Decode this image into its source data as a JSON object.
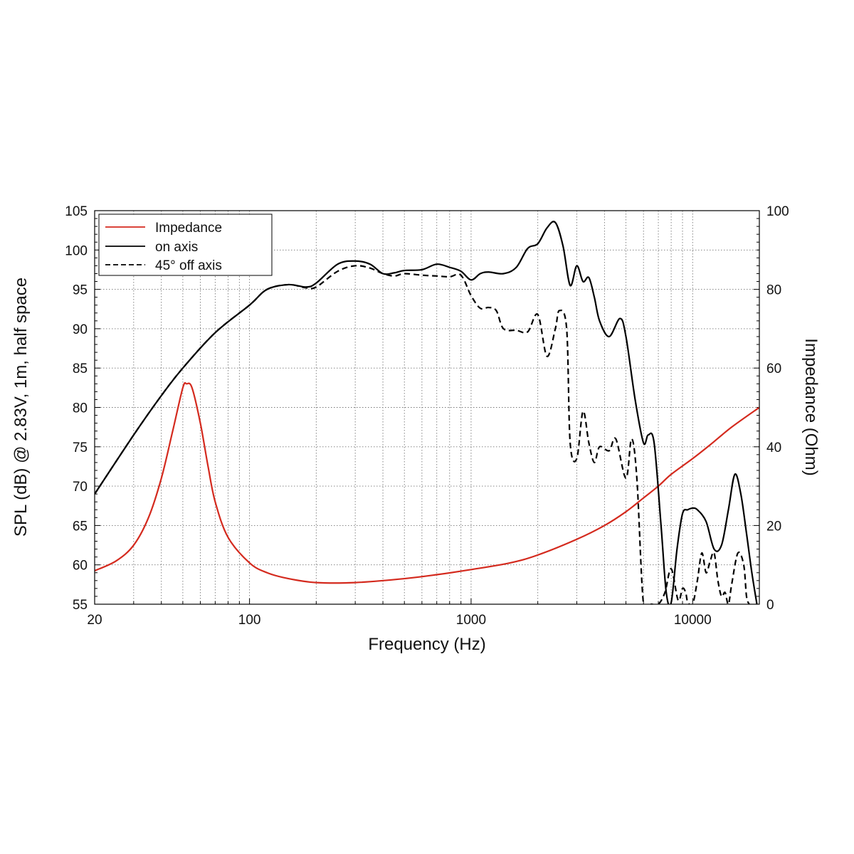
{
  "chart_data": {
    "type": "line",
    "x_scale": "log",
    "xlabel": "Frequency (Hz)",
    "ylabel": "SPL (dB) @ 2.83V, 1m, half space",
    "y2label": "Impedance (Ohm)",
    "xlim": [
      20,
      20000
    ],
    "ylim": [
      55,
      105
    ],
    "y2lim": [
      0,
      100
    ],
    "x_ticks": [
      "20",
      "100",
      "1000",
      "10000"
    ],
    "y_ticks": [
      "55",
      "60",
      "65",
      "70",
      "75",
      "80",
      "85",
      "90",
      "95",
      "100",
      "105"
    ],
    "y2_ticks": [
      "0",
      "20",
      "40",
      "60",
      "80",
      "100"
    ],
    "grid": true,
    "legend_position": "top-left",
    "series": [
      {
        "name": "Impedance",
        "axis": "right",
        "color": "#d42a1e",
        "dash": "solid",
        "points": [
          [
            20,
            8.5
          ],
          [
            25,
            11
          ],
          [
            30,
            15
          ],
          [
            35,
            22
          ],
          [
            40,
            32
          ],
          [
            45,
            44
          ],
          [
            50,
            55
          ],
          [
            52,
            56
          ],
          [
            55,
            55
          ],
          [
            60,
            46
          ],
          [
            65,
            35
          ],
          [
            70,
            26
          ],
          [
            80,
            17
          ],
          [
            100,
            10.5
          ],
          [
            120,
            8
          ],
          [
            150,
            6.5
          ],
          [
            200,
            5.5
          ],
          [
            300,
            5.5
          ],
          [
            500,
            6.5
          ],
          [
            700,
            7.5
          ],
          [
            1000,
            8.8
          ],
          [
            1500,
            10.5
          ],
          [
            2000,
            12.5
          ],
          [
            3000,
            16.5
          ],
          [
            4000,
            20
          ],
          [
            5000,
            23.5
          ],
          [
            6000,
            27
          ],
          [
            7000,
            30
          ],
          [
            8000,
            33
          ],
          [
            10000,
            37
          ],
          [
            12000,
            40.5
          ],
          [
            15000,
            45
          ],
          [
            20000,
            50
          ]
        ]
      },
      {
        "name": "on axis",
        "axis": "left",
        "color": "#000000",
        "dash": "solid",
        "points": [
          [
            20,
            69
          ],
          [
            30,
            76.5
          ],
          [
            40,
            81.5
          ],
          [
            50,
            85
          ],
          [
            70,
            89.5
          ],
          [
            100,
            93
          ],
          [
            120,
            95
          ],
          [
            150,
            95.6
          ],
          [
            180,
            95.3
          ],
          [
            200,
            95.8
          ],
          [
            250,
            98.2
          ],
          [
            300,
            98.6
          ],
          [
            350,
            98.2
          ],
          [
            400,
            97
          ],
          [
            450,
            97.1
          ],
          [
            500,
            97.4
          ],
          [
            600,
            97.5
          ],
          [
            700,
            98.2
          ],
          [
            800,
            97.8
          ],
          [
            900,
            97.3
          ],
          [
            1000,
            96.2
          ],
          [
            1100,
            97
          ],
          [
            1200,
            97.2
          ],
          [
            1400,
            97
          ],
          [
            1600,
            97.8
          ],
          [
            1800,
            100.2
          ],
          [
            2000,
            100.8
          ],
          [
            2200,
            102.8
          ],
          [
            2400,
            103.5
          ],
          [
            2600,
            100.5
          ],
          [
            2800,
            95.5
          ],
          [
            3000,
            98
          ],
          [
            3200,
            96
          ],
          [
            3400,
            96.5
          ],
          [
            3600,
            94
          ],
          [
            3800,
            91
          ],
          [
            4200,
            89
          ],
          [
            4700,
            91.3
          ],
          [
            5000,
            89
          ],
          [
            5500,
            81
          ],
          [
            6000,
            75.5
          ],
          [
            6300,
            76.5
          ],
          [
            6700,
            75.5
          ],
          [
            7200,
            65
          ],
          [
            7600,
            56.5
          ],
          [
            8000,
            55.2
          ],
          [
            8500,
            62
          ],
          [
            9000,
            66.5
          ],
          [
            9500,
            67
          ],
          [
            10000,
            67.2
          ],
          [
            10500,
            67
          ],
          [
            11500,
            65.5
          ],
          [
            12500,
            62
          ],
          [
            13500,
            62.5
          ],
          [
            14500,
            67
          ],
          [
            15500,
            71.5
          ],
          [
            16500,
            69
          ],
          [
            17500,
            64
          ],
          [
            18500,
            59
          ],
          [
            19500,
            55
          ]
        ]
      },
      {
        "name": "45° off axis",
        "axis": "left",
        "color": "#000000",
        "dash": "dashed",
        "points": [
          [
            20,
            69
          ],
          [
            30,
            76.5
          ],
          [
            40,
            81.5
          ],
          [
            50,
            85
          ],
          [
            70,
            89.5
          ],
          [
            100,
            93
          ],
          [
            120,
            95
          ],
          [
            150,
            95.6
          ],
          [
            180,
            95.2
          ],
          [
            200,
            95.3
          ],
          [
            250,
            97.3
          ],
          [
            300,
            98
          ],
          [
            350,
            97.7
          ],
          [
            400,
            97
          ],
          [
            450,
            96.7
          ],
          [
            500,
            97
          ],
          [
            600,
            96.8
          ],
          [
            700,
            96.7
          ],
          [
            800,
            96.6
          ],
          [
            900,
            96.8
          ],
          [
            1000,
            94.2
          ],
          [
            1100,
            92.6
          ],
          [
            1200,
            92.7
          ],
          [
            1300,
            92.3
          ],
          [
            1400,
            90
          ],
          [
            1600,
            89.8
          ],
          [
            1800,
            89.6
          ],
          [
            2000,
            91.8
          ],
          [
            2200,
            86.5
          ],
          [
            2400,
            90
          ],
          [
            2500,
            92.3
          ],
          [
            2700,
            90
          ],
          [
            2800,
            75.5
          ],
          [
            3000,
            73.5
          ],
          [
            3200,
            79.5
          ],
          [
            3400,
            75.5
          ],
          [
            3600,
            73
          ],
          [
            3800,
            75
          ],
          [
            4200,
            74.5
          ],
          [
            4500,
            76
          ],
          [
            5000,
            71
          ],
          [
            5300,
            76
          ],
          [
            5600,
            71
          ],
          [
            6000,
            55
          ],
          [
            6500,
            55
          ],
          [
            7000,
            55
          ],
          [
            7500,
            56.5
          ],
          [
            8000,
            59.5
          ],
          [
            8600,
            55.5
          ],
          [
            9000,
            57
          ],
          [
            9300,
            56.5
          ],
          [
            9500,
            55.3
          ],
          [
            10000,
            55
          ],
          [
            10500,
            58
          ],
          [
            11000,
            61.5
          ],
          [
            11500,
            59
          ],
          [
            12000,
            60.5
          ],
          [
            12500,
            61.5
          ],
          [
            13000,
            58
          ],
          [
            13500,
            56
          ],
          [
            14000,
            56.5
          ],
          [
            14500,
            55
          ],
          [
            15000,
            57.5
          ],
          [
            16000,
            61.5
          ],
          [
            17000,
            60
          ],
          [
            17500,
            56
          ],
          [
            18000,
            55
          ]
        ]
      }
    ]
  }
}
